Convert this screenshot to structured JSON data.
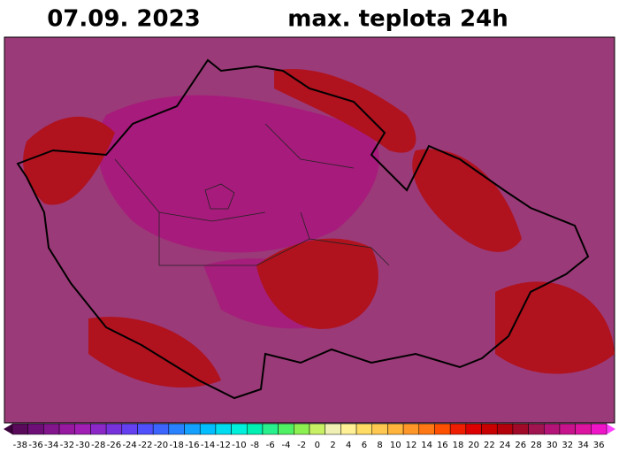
{
  "header": {
    "date": "07.09.  2023",
    "title": "max. teplota 24h"
  },
  "scale": {
    "ticks": [
      -38,
      -36,
      -34,
      -32,
      -30,
      -28,
      -26,
      -24,
      -22,
      -20,
      -18,
      -16,
      -14,
      -12,
      -10,
      -8,
      -6,
      -4,
      -2,
      0,
      2,
      4,
      6,
      8,
      10,
      12,
      14,
      16,
      18,
      20,
      22,
      24,
      26,
      28,
      30,
      32,
      34,
      36
    ],
    "colors": [
      "#5a0a5a",
      "#6e0f78",
      "#82148c",
      "#9619a0",
      "#a01eb4",
      "#8c28c8",
      "#7832dc",
      "#6440f0",
      "#5050ff",
      "#3c64ff",
      "#2882ff",
      "#14a0ff",
      "#00beff",
      "#00dcf0",
      "#00f0dc",
      "#00f0b4",
      "#28f08c",
      "#50f064",
      "#8cf050",
      "#c8f064",
      "#f0f0b4",
      "#fff096",
      "#ffdc64",
      "#ffc850",
      "#ffb43c",
      "#ff9628",
      "#ff7814",
      "#ff5000",
      "#f01e00",
      "#dc0000",
      "#c80000",
      "#b4000a",
      "#a00a28",
      "#a01450",
      "#b41478",
      "#c8148c",
      "#dc14a0",
      "#f014c8"
    ]
  }
}
